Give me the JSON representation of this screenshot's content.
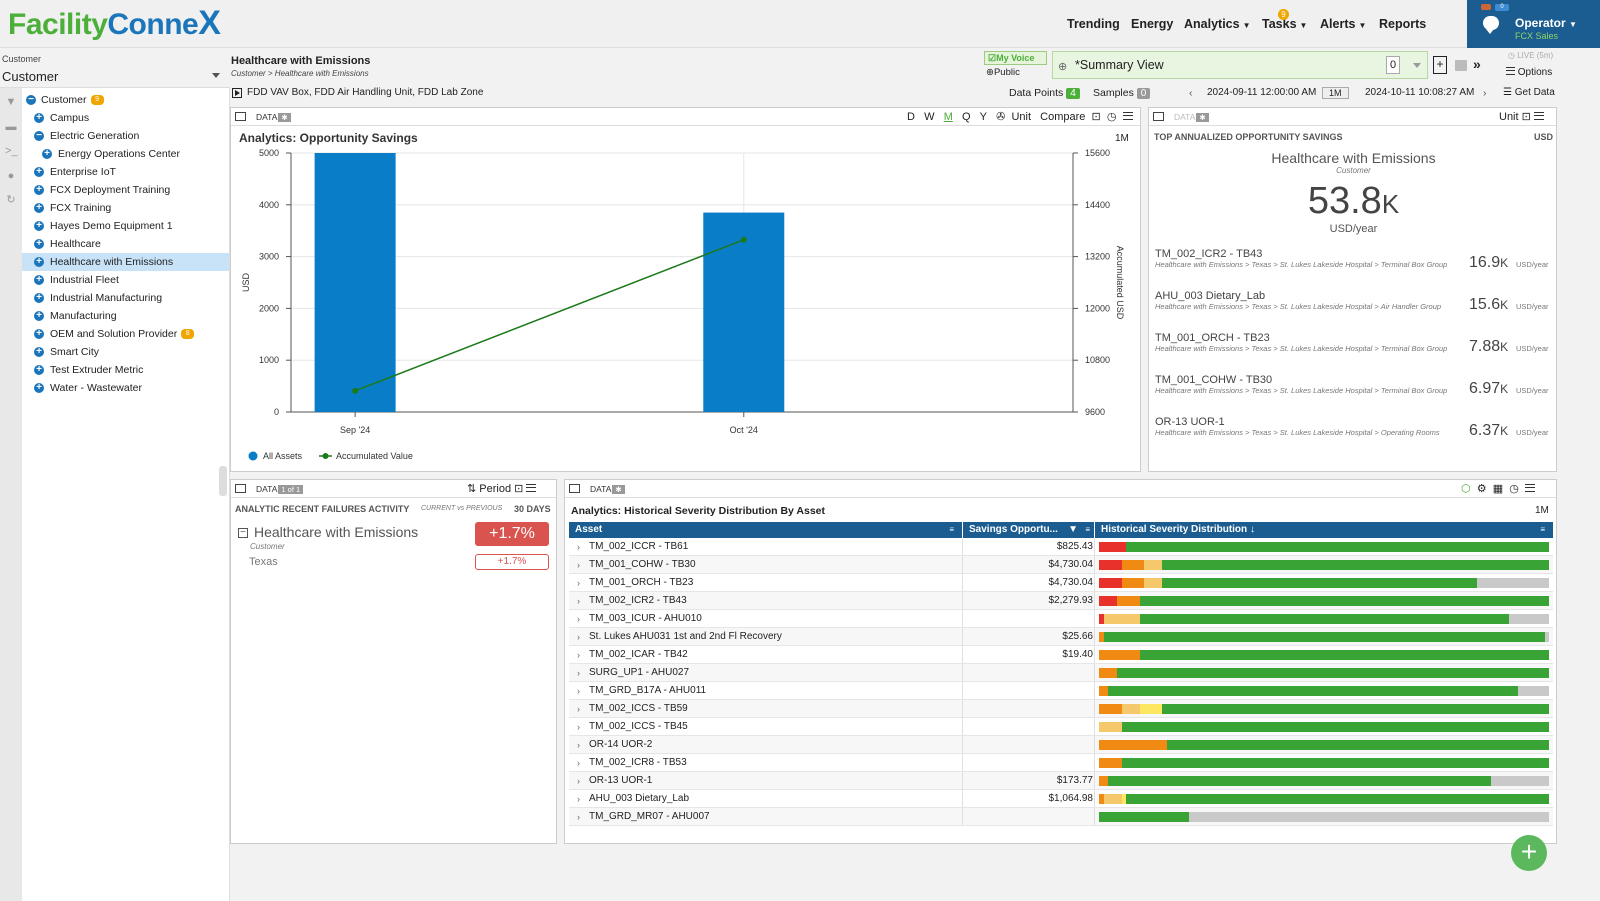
{
  "app": {
    "logo_part1": "Facility",
    "logo_part2": "Conne",
    "logo_part3": "X"
  },
  "nav": {
    "items": [
      "Trending",
      "Energy",
      "Analytics",
      "Tasks",
      "Alerts",
      "Reports"
    ],
    "tasks_badge": "9",
    "operator_name": "Operator",
    "operator_sub": "FCX Sales",
    "operator_badge": "0"
  },
  "customer_select": {
    "label": "Customer",
    "value": "Customer"
  },
  "tree": [
    {
      "label": "Customer",
      "badge": "9"
    },
    {
      "label": "Campus"
    },
    {
      "label": "Electric Generation"
    },
    {
      "label": "Energy Operations Center"
    },
    {
      "label": "Enterprise IoT"
    },
    {
      "label": "FCX Deployment Training"
    },
    {
      "label": "FCX Training"
    },
    {
      "label": "Hayes Demo Equipment 1"
    },
    {
      "label": "Healthcare"
    },
    {
      "label": "Healthcare with Emissions"
    },
    {
      "label": "Industrial Fleet"
    },
    {
      "label": "Industrial Manufacturing"
    },
    {
      "label": "Manufacturing"
    },
    {
      "label": "OEM and Solution Provider",
      "badge": "8"
    },
    {
      "label": "Smart City"
    },
    {
      "label": "Test Extruder Metric"
    },
    {
      "label": "Water - Wastewater"
    }
  ],
  "header": {
    "title": "Healthcare with Emissions",
    "breadcrumb": "Customer > Healthcare with Emissions",
    "my_voice": "My Voice",
    "public": "Public",
    "view_name": "*Summary View",
    "view_count": "0",
    "live": "LIVE (5m)",
    "options": "Options",
    "fdd": "FDD VAV Box, FDD Air Handling Unit, FDD Lab Zone",
    "data_points_label": "Data Points",
    "data_points": "4",
    "samples_label": "Samples",
    "samples": "0",
    "start": "2024-09-11 12:00:00 AM",
    "range": "1M",
    "end": "2024-10-11 10:08:27 AM",
    "get_data": "Get Data"
  },
  "chart_panel": {
    "data_label": "DATA",
    "tools": [
      "D",
      "W",
      "M",
      "Q",
      "Y"
    ],
    "unit": "Unit",
    "compare": "Compare",
    "period": "1M",
    "title": "Analytics: Opportunity Savings"
  },
  "chart_data": {
    "type": "bar",
    "title": "Analytics: Opportunity Savings",
    "categories": [
      "Sep '24",
      "Oct '24"
    ],
    "ylabel": "USD",
    "y2label": "Accumulated USD",
    "ylim": [
      0,
      5000
    ],
    "y2lim": [
      9600,
      15600
    ],
    "yticks": [
      0,
      1000,
      2000,
      3000,
      4000,
      5000
    ],
    "y2ticks": [
      9600,
      10800,
      12000,
      13200,
      14400,
      15600
    ],
    "series": [
      {
        "name": "All Assets",
        "type": "bar",
        "color": "#0a7dc8",
        "values": [
          5000,
          3850
        ]
      },
      {
        "name": "Accumulated Value",
        "type": "line",
        "color": "#1a7a1a",
        "axis": "right",
        "values": [
          10090,
          13590
        ]
      }
    ],
    "legend_position": "bottom-left",
    "grid": true
  },
  "opportunity_panel": {
    "data_label": "DATA",
    "unit": "Unit",
    "header": "TOP ANNUALIZED OPPORTUNITY SAVINGS",
    "header_unit": "USD",
    "entity": "Healthcare with Emissions",
    "entity_type": "Customer",
    "total_value": "53.8",
    "total_suffix": "K",
    "total_unit": "USD/year",
    "items": [
      {
        "name": "TM_002_ICR2 - TB43",
        "path": "Healthcare with Emissions > Texas > St. Lukes Lakeside Hospital > Terminal Box Group",
        "value": "16.9",
        "suffix": "K",
        "unit": "USD/year"
      },
      {
        "name": "AHU_003 Dietary_Lab",
        "path": "Healthcare with Emissions > Texas > St. Lukes Lakeside Hospital > Air Handler Group",
        "value": "15.6",
        "suffix": "K",
        "unit": "USD/year"
      },
      {
        "name": "TM_001_ORCH - TB23",
        "path": "Healthcare with Emissions > Texas > St. Lukes Lakeside Hospital > Terminal Box Group",
        "value": "7.88",
        "suffix": "K",
        "unit": "USD/year"
      },
      {
        "name": "TM_001_COHW - TB30",
        "path": "Healthcare with Emissions > Texas > St. Lukes Lakeside Hospital > Terminal Box Group",
        "value": "6.97",
        "suffix": "K",
        "unit": "USD/year"
      },
      {
        "name": "OR-13 UOR-1",
        "path": "Healthcare with Emissions > Texas > St. Lukes Lakeside Hospital > Operating Rooms",
        "value": "6.37",
        "suffix": "K",
        "unit": "USD/year"
      }
    ]
  },
  "failures_panel": {
    "data_label": "DATA",
    "data_badge": "1 of 1",
    "period": "Period",
    "header": "ANALYTIC RECENT FAILURES ACTIVITY",
    "compare": "CURRENT vs PREVIOUS",
    "days": "30 DAYS",
    "entity": "Healthcare with Emissions",
    "entity_type": "Customer",
    "entity_change": "+1.7%",
    "child": "Texas",
    "child_change": "+1.7%"
  },
  "severity_panel": {
    "data_label": "DATA",
    "title": "Analytics: Historical Severity Distribution By Asset",
    "period": "1M",
    "columns": [
      "Asset",
      "Savings Opportu...",
      "Historical Severity Distribution"
    ],
    "colors": {
      "red": "#e8312a",
      "orange": "#f08a12",
      "yellow": "#f5c96b",
      "lightyellow": "#fde761",
      "green": "#3aa335",
      "gray": "#c9c9c9"
    },
    "rows": [
      {
        "asset": "TM_002_ICCR - TB61",
        "savings": "$825.43",
        "dist": [
          [
            "red",
            6
          ],
          [
            "green",
            94
          ]
        ]
      },
      {
        "asset": "TM_001_COHW - TB30",
        "savings": "$4,730.04",
        "dist": [
          [
            "red",
            5
          ],
          [
            "orange",
            5
          ],
          [
            "yellow",
            4
          ],
          [
            "green",
            86
          ]
        ]
      },
      {
        "asset": "TM_001_ORCH - TB23",
        "savings": "$4,730.04",
        "dist": [
          [
            "red",
            5
          ],
          [
            "orange",
            5
          ],
          [
            "yellow",
            4
          ],
          [
            "green",
            70
          ],
          [
            "gray",
            16
          ]
        ]
      },
      {
        "asset": "TM_002_ICR2 - TB43",
        "savings": "$2,279.93",
        "dist": [
          [
            "red",
            4
          ],
          [
            "orange",
            5
          ],
          [
            "green",
            91
          ]
        ]
      },
      {
        "asset": "TM_003_ICUR - AHU010",
        "savings": "",
        "dist": [
          [
            "red",
            1
          ],
          [
            "yellow",
            8
          ],
          [
            "green",
            82
          ],
          [
            "gray",
            9
          ]
        ]
      },
      {
        "asset": "St. Lukes AHU031 1st and 2nd Fl Recovery",
        "savings": "$25.66",
        "dist": [
          [
            "orange",
            1
          ],
          [
            "green",
            98
          ],
          [
            "gray",
            1
          ]
        ]
      },
      {
        "asset": "TM_002_ICAR - TB42",
        "savings": "$19.40",
        "dist": [
          [
            "orange",
            9
          ],
          [
            "green",
            91
          ]
        ]
      },
      {
        "asset": "SURG_UP1 - AHU027",
        "savings": "",
        "dist": [
          [
            "orange",
            4
          ],
          [
            "green",
            96
          ]
        ]
      },
      {
        "asset": "TM_GRD_B17A - AHU011",
        "savings": "",
        "dist": [
          [
            "orange",
            2
          ],
          [
            "green",
            91
          ],
          [
            "gray",
            7
          ]
        ]
      },
      {
        "asset": "TM_002_ICCS - TB59",
        "savings": "",
        "dist": [
          [
            "orange",
            5
          ],
          [
            "yellow",
            4
          ],
          [
            "lightyellow",
            5
          ],
          [
            "green",
            86
          ]
        ]
      },
      {
        "asset": "TM_002_ICCS - TB45",
        "savings": "",
        "dist": [
          [
            "yellow",
            5
          ],
          [
            "green",
            95
          ]
        ]
      },
      {
        "asset": "OR-14 UOR-2",
        "savings": "",
        "dist": [
          [
            "orange",
            15
          ],
          [
            "green",
            85
          ]
        ]
      },
      {
        "asset": "TM_002_ICR8 - TB53",
        "savings": "",
        "dist": [
          [
            "orange",
            5
          ],
          [
            "green",
            95
          ]
        ]
      },
      {
        "asset": "OR-13 UOR-1",
        "savings": "$173.77",
        "dist": [
          [
            "orange",
            2
          ],
          [
            "green",
            85
          ],
          [
            "gray",
            13
          ]
        ]
      },
      {
        "asset": "AHU_003 Dietary_Lab",
        "savings": "$1,064.98",
        "dist": [
          [
            "orange",
            1
          ],
          [
            "yellow",
            4
          ],
          [
            "lightyellow",
            1
          ],
          [
            "green",
            94
          ]
        ]
      },
      {
        "asset": "TM_GRD_MR07 - AHU007",
        "savings": "",
        "dist": [
          [
            "green",
            20
          ],
          [
            "gray",
            80
          ]
        ]
      }
    ]
  }
}
